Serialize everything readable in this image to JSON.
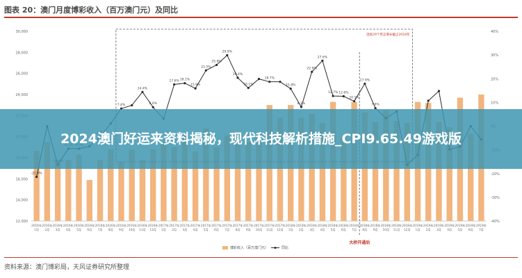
{
  "figure_title": "图表 20：澳门月度博彩收入（百万澳门元）及同比",
  "source_text": "资料来源：澳门博彩局，天风证券研究所整理",
  "banner_text": "2024澳门好运来资料揭秘，现代科技解析措施_CPI9.65.49游戏版",
  "colors": {
    "bar": "#f2b57e",
    "line": "#2b2b2b",
    "banner": "#4096b2",
    "accent": "#c0392b"
  },
  "chart_data": {
    "type": "bar",
    "categories": [
      "2016年\n1月",
      "2016年\n2月",
      "2016年\n3月",
      "2016年\n4月",
      "2016年\n5月",
      "2016年\n6月",
      "2016年\n7月",
      "2016年\n8月",
      "2016年\n9月",
      "2016年\n10月",
      "2016年\n11月",
      "2016年\n12月",
      "2017年\n1月",
      "2017年\n2月",
      "2017年\n3月",
      "2017年\n4月",
      "2017年\n5月",
      "2017年\n6月",
      "2017年\n7月",
      "2017年\n8月",
      "2017年\n9月",
      "2017年\n10月",
      "2017年\n11月",
      "2017年\n12月",
      "2018年\n1月",
      "2018年\n2月",
      "2018年\n3月",
      "2018年\n4月",
      "2018年\n5月",
      "2018年\n6月",
      "2018年\n7月",
      "2018年\n8月",
      "2018年\n9月",
      "2018年\n10月",
      "2018年\n11月",
      "2018年\n12月",
      "2019年\n1月",
      "2019年\n2月",
      "2019年\n3月",
      "2019年\n4月",
      "2019年\n5月",
      "2019年\n6月",
      "2019年\n7月"
    ],
    "series": [
      {
        "name": "博彩收入（百万澳门元）",
        "type": "bar",
        "values": [
          18650,
          19500,
          17800,
          17800,
          18300,
          15900,
          17800,
          18800,
          17600,
          18800,
          17800,
          18800,
          19500,
          19000,
          20100,
          18600,
          20800,
          19000,
          20100,
          20300,
          19500,
          20200,
          23000,
          21800,
          23000,
          21800,
          22200,
          21300,
          23300,
          19900,
          23300,
          22300,
          21400,
          22500,
          21500,
          21300,
          23300,
          23200,
          21400,
          20900,
          23700,
          20300,
          24000
        ]
      },
      {
        "name": "同比",
        "type": "line",
        "values": [
          -21.4,
          0.0,
          -16.3,
          -9.5,
          -9.5,
          -8.5,
          -4.6,
          1.1,
          7.4,
          8.8,
          14.4,
          8.0,
          3.1,
          17.6,
          18.1,
          15.9,
          23.5,
          25.8,
          29.9,
          20.4,
          16.1,
          19.9,
          18.7,
          18.7,
          15.8,
          8.1,
          22.9,
          27.6,
          12.7,
          12.6,
          10.5,
          17.9,
          7.6,
          3.3,
          6.2,
          -16.3,
          -12.1,
          10.7,
          14.8,
          -9.8,
          -8.6,
          0.0,
          -5.6
        ]
      }
    ],
    "y_left": {
      "min": 12000,
      "max": 30000,
      "ticks": [
        "12,000",
        "14,000",
        "16,000",
        "18,000",
        "20,000",
        "22,000",
        "24,000",
        "26,000",
        "28,000",
        "30,000"
      ]
    },
    "y_right": {
      "min": -40,
      "max": 40,
      "ticks": [
        "-40%",
        "-30%",
        "-20%",
        "-10%",
        "0%",
        "10%",
        "20%",
        "30%",
        "40%"
      ]
    },
    "point_labels": [
      "-21.4%",
      "",
      "-16.3%",
      "-9.5%",
      "-9.5%",
      "",
      "-4.6%",
      "",
      "7.4%",
      "",
      "14.4%",
      "8.0%",
      "",
      "17.6%",
      "18.1%",
      "15.9%",
      "23.5%",
      "25.8%",
      "29.9%",
      "20.4%",
      "16.1%",
      "",
      "18.7%",
      "",
      "15.8%",
      "8.1%",
      "22.9%",
      "27.6%",
      "12.7%",
      "12.6%",
      "10.5%",
      "17.9%",
      "7.6%",
      "",
      "",
      "",
      "",
      "",
      "",
      "",
      "",
      "",
      ""
    ],
    "annotations": {
      "box_label": "连续29个月正增长截止2018年",
      "vline_label": "大桥开通后"
    },
    "legend": [
      "博彩收入（百万澳门元）",
      "同比"
    ],
    "grid": false,
    "legend_position": "bottom"
  }
}
